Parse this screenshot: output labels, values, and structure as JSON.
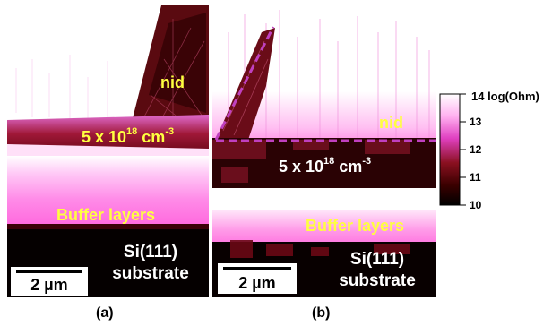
{
  "panel_a": {
    "labels": {
      "nid": "nid",
      "doped_base": "5 x 10",
      "doped_exp": "18",
      "doped_unit": " cm",
      "doped_unit_exp": "-3",
      "buffer": "Buffer layers",
      "substrate_line1": "Si(111)",
      "substrate_line2": "substrate"
    },
    "scale_bar": "2 µm",
    "caption": "(a)"
  },
  "panel_b": {
    "labels": {
      "nid": "nid",
      "doped_base": "5 x 10",
      "doped_exp": "18",
      "doped_unit": " cm",
      "doped_unit_exp": "-3",
      "buffer": "Buffer layers",
      "substrate_line1": "Si(111)",
      "substrate_line2": "substrate"
    },
    "scale_bar": "2 µm",
    "caption": "(b)",
    "overlay_color": "#c040c0"
  },
  "colorbar": {
    "title": "14 log(Ohm)",
    "ticks": [
      "13",
      "12",
      "11",
      "10"
    ],
    "colors": [
      "#ffffff",
      "#ff99ee",
      "#e040c0",
      "#8a1020",
      "#3a0000",
      "#000000"
    ]
  },
  "colors": {
    "label_yellow": "#ffff40",
    "label_white": "#ffffff",
    "magenta": "#ff66dd",
    "dark_red": "#4a0008"
  }
}
